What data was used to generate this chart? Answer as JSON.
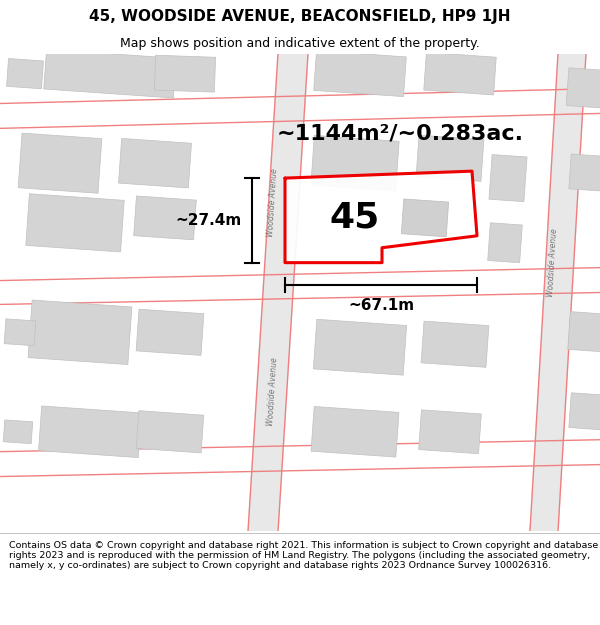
{
  "title": "45, WOODSIDE AVENUE, BEACONSFIELD, HP9 1JH",
  "subtitle": "Map shows position and indicative extent of the property.",
  "footer": "Contains OS data © Crown copyright and database right 2021. This information is subject to Crown copyright and database rights 2023 and is reproduced with the permission of HM Land Registry. The polygons (including the associated geometry, namely x, y co-ordinates) are subject to Crown copyright and database rights 2023 Ordnance Survey 100026316.",
  "map_bg": "#efefef",
  "title_color": "#000000",
  "footer_color": "#000000",
  "plot_outline_color": "#ee0000",
  "road_line_color": "#f08080",
  "area_text": "~1144m²/~0.283ac.",
  "number_text": "45",
  "width_text": "~67.1m",
  "height_text": "~27.4m",
  "title_fontsize": 11,
  "subtitle_fontsize": 9,
  "footer_fontsize": 6.8,
  "area_fontsize": 16,
  "number_fontsize": 26,
  "meas_fontsize": 11
}
